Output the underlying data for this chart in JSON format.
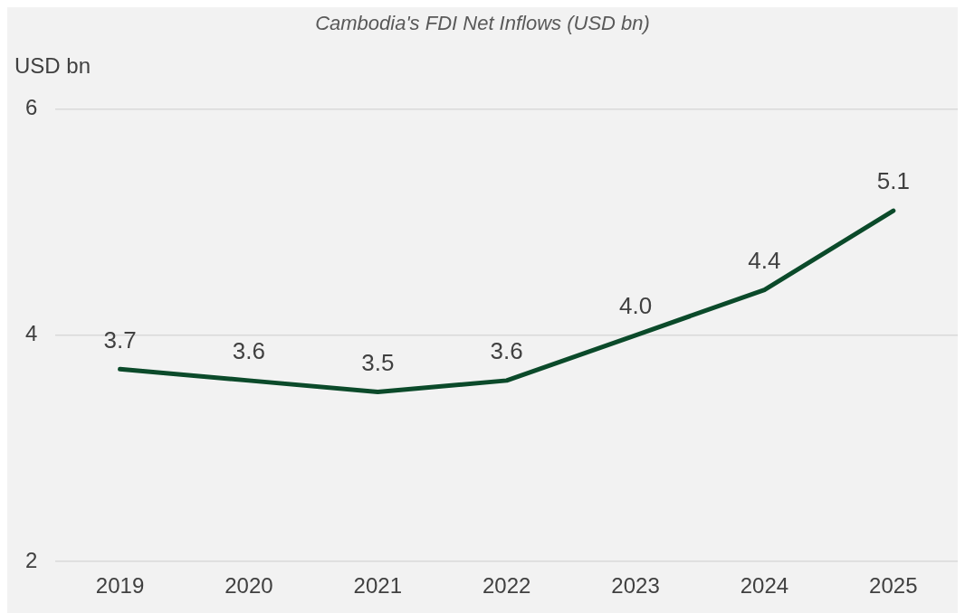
{
  "chart_data": {
    "type": "line",
    "title": "Cambodia's FDI Net Inflows (USD bn)",
    "ylabel": "USD bn",
    "categories": [
      "2019",
      "2020",
      "2021",
      "2022",
      "2023",
      "2024",
      "2025"
    ],
    "series": [
      {
        "color": "#0b4a2a",
        "values": [
          3.7,
          3.6,
          3.5,
          3.6,
          4.0,
          4.4,
          5.1
        ],
        "value_labels": [
          "3.7",
          "3.6",
          "3.5",
          "3.6",
          "4.0",
          "4.4",
          "5.1"
        ]
      }
    ],
    "ylim": [
      2,
      6
    ],
    "yticks": [
      2,
      4,
      6
    ],
    "grid": "y",
    "legend": false,
    "marker": "none",
    "line_style": "solid"
  }
}
